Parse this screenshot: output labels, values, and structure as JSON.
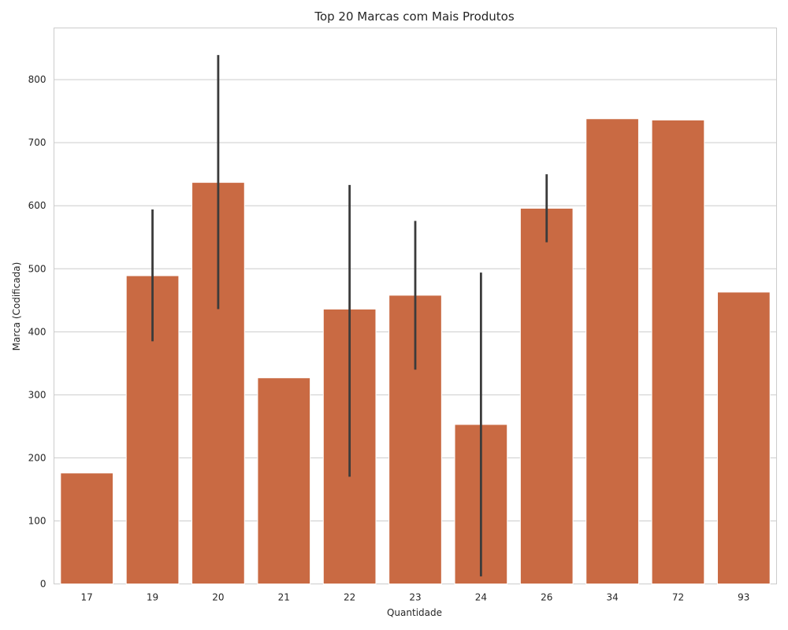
{
  "chart_data": {
    "type": "bar",
    "title": "Top 20 Marcas com Mais Produtos",
    "xlabel": "Quantidade",
    "ylabel": "Marca (Codificada)",
    "categories": [
      "17",
      "19",
      "20",
      "21",
      "22",
      "23",
      "24",
      "26",
      "34",
      "72",
      "93"
    ],
    "values": [
      176,
      489,
      637,
      327,
      436,
      458,
      253,
      596,
      738,
      736,
      463
    ],
    "error_bars": [
      null,
      [
        385,
        594
      ],
      [
        436,
        839
      ],
      null,
      [
        170,
        633
      ],
      [
        340,
        576
      ],
      [
        12,
        494
      ],
      [
        542,
        650
      ],
      null,
      null,
      null
    ],
    "yticks": [
      0,
      100,
      200,
      300,
      400,
      500,
      600,
      700,
      800
    ],
    "ylim": [
      0,
      882
    ],
    "grid": true,
    "bar_color": "#c96a43",
    "error_color": "#3b3b3b",
    "grid_color": "#cccccc"
  }
}
